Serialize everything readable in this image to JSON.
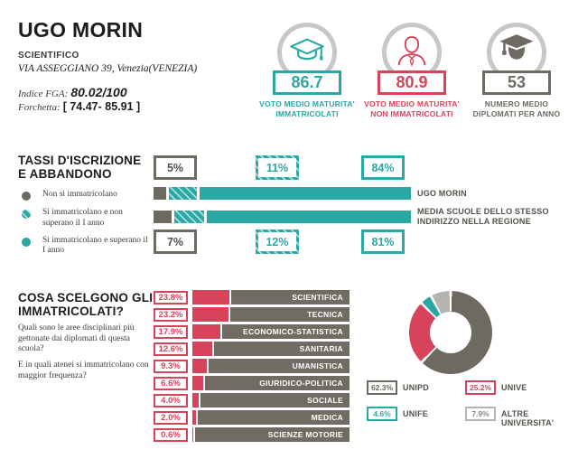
{
  "colors": {
    "teal": "#2ba7a4",
    "red": "#d7435a",
    "dark_gray": "#6e6961",
    "bar_gray": "#716c63",
    "light_gray": "#b5b3b0",
    "ring_gray": "#c9c7c5",
    "label_gray": "#55514b"
  },
  "header": {
    "school_name": "UGO MORIN",
    "school_type": "SCIENTIFICO",
    "address": "VIA ASSEGGIANO 39, Venezia(VENEZIA)",
    "fga_label": "Indice FGA:",
    "fga_value": "80.02/100",
    "forchetta_label": "Forchetta:",
    "forchetta_value": "[ 74.47- 85.91 ]",
    "stats": [
      {
        "icon": "graduation-cap-icon",
        "value": "86.7",
        "label": "VOTO MEDIO MATURITA' IMMATRICOLATI",
        "color": "teal"
      },
      {
        "icon": "person-icon",
        "value": "80.9",
        "label": "VOTO MEDIO MATURITA' NON IMMATRICOLATI",
        "color": "red"
      },
      {
        "icon": "graduate-icon",
        "value": "53",
        "label": "NUMERO MEDIO DIPLOMATI PER ANNO",
        "color": "gray"
      }
    ]
  },
  "tassi": {
    "title": "TASSI D'ISCRIZIONE E ABBANDONO",
    "legend": [
      {
        "label": "Non si immatricolano",
        "swatch": "gray-solid"
      },
      {
        "label": "Si immatricolano e non superano il I anno",
        "swatch": "teal-hatch"
      },
      {
        "label": "Si immatricolano e superano il I anno",
        "swatch": "teal-solid"
      }
    ]
  },
  "cosa": {
    "title": "COSA SCELGONO GLI IMMATRICOLATI?",
    "question1": "Quali sono le aree disciplinari più gettonate dai diplomati di questa scuola?",
    "question2": "E in quali atenei si immatricolano con maggior frequenza?"
  },
  "chart_data": [
    {
      "type": "bar",
      "subtype": "horizontal-stacked-100",
      "title": "TASSI D'ISCRIZIONE E ABBANDONO",
      "categories": [
        "UGO MORIN",
        "MEDIA SCUOLE DELLO STESSO INDIRIZZO NELLA REGIONE"
      ],
      "series": [
        {
          "name": "Non si immatricolano",
          "color": "#6e6961",
          "pattern": "solid",
          "values": [
            5,
            7
          ]
        },
        {
          "name": "Si immatricolano e non superano il I anno",
          "color": "#2ba7a4",
          "pattern": "hatch",
          "values": [
            11,
            12
          ]
        },
        {
          "name": "Si immatricolano e superano il I anno",
          "color": "#2ba7a4",
          "pattern": "solid",
          "values": [
            84,
            81
          ]
        }
      ],
      "unit": "%",
      "xlim": [
        0,
        100
      ],
      "grid": false
    },
    {
      "type": "bar",
      "subtype": "horizontal",
      "categories": [
        "SCIENTIFICA",
        "TECNICA",
        "ECONOMICO-STATISTICA",
        "SANITARIA",
        "UMANISTICA",
        "GIURIDICO-POLITICA",
        "SOCIALE",
        "MEDICA",
        "SCIENZE MOTORIE"
      ],
      "values": [
        23.8,
        23.2,
        17.9,
        12.6,
        9.3,
        6.6,
        4.0,
        2.0,
        0.6
      ],
      "unit": "%",
      "bar_color": "#d7435a",
      "track_color": "#716c63",
      "xlim": [
        0,
        100
      ],
      "grid": false
    },
    {
      "type": "pie",
      "subtype": "donut",
      "labels": [
        "UNIPD",
        "UNIVE",
        "UNIFE",
        "ALTRE UNIVERSITA'"
      ],
      "values": [
        62.3,
        25.2,
        4.6,
        7.9
      ],
      "colors": [
        "#6e6961",
        "#d7435a",
        "#2ba7a4",
        "#b5b3b0"
      ],
      "unit": "%",
      "legend_position": "bottom"
    }
  ]
}
